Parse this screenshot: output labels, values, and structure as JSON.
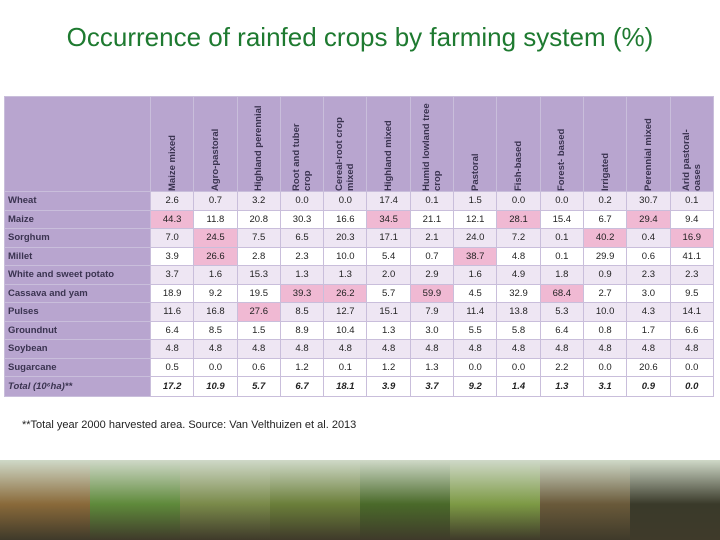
{
  "title": "Occurrence of rainfed crops by farming system (%)",
  "table": {
    "columns": [
      "Maize mixed",
      "Agro-pastoral",
      "Highland perennial",
      "Root and tuber crop",
      "Cereal-root crop mixed",
      "Highland mixed",
      "Humid lowland tree crop",
      "Pastoral",
      "Fish-based",
      "Forest- based",
      "Irrigated",
      "Perennial mixed",
      "Arid pastoral-oases"
    ],
    "rows": [
      {
        "label": "Wheat",
        "values": [
          "2.6",
          "0.7",
          "3.2",
          "0.0",
          "0.0",
          "17.4",
          "0.1",
          "1.5",
          "0.0",
          "0.0",
          "0.2",
          "30.7",
          "0.1"
        ]
      },
      {
        "label": "Maize",
        "values": [
          "44.3",
          "11.8",
          "20.8",
          "30.3",
          "16.6",
          "34.5",
          "21.1",
          "12.1",
          "28.1",
          "15.4",
          "6.7",
          "29.4",
          "9.4"
        ]
      },
      {
        "label": "Sorghum",
        "values": [
          "7.0",
          "24.5",
          "7.5",
          "6.5",
          "20.3",
          "17.1",
          "2.1",
          "24.0",
          "7.2",
          "0.1",
          "40.2",
          "0.4",
          "16.9"
        ]
      },
      {
        "label": "Millet",
        "values": [
          "3.9",
          "26.6",
          "2.8",
          "2.3",
          "10.0",
          "5.4",
          "0.7",
          "38.7",
          "4.8",
          "0.1",
          "29.9",
          "0.6",
          "41.1"
        ]
      },
      {
        "label": "White and sweet potato",
        "values": [
          "3.7",
          "1.6",
          "15.3",
          "1.3",
          "1.3",
          "2.0",
          "2.9",
          "1.6",
          "4.9",
          "1.8",
          "0.9",
          "2.3",
          "2.3"
        ]
      },
      {
        "label": "Cassava and yam",
        "values": [
          "18.9",
          "9.2",
          "19.5",
          "39.3",
          "26.2",
          "5.7",
          "59.9",
          "4.5",
          "32.9",
          "68.4",
          "2.7",
          "3.0",
          "9.5"
        ]
      },
      {
        "label": "Pulses",
        "values": [
          "11.6",
          "16.8",
          "27.6",
          "8.5",
          "12.7",
          "15.1",
          "7.9",
          "11.4",
          "13.8",
          "5.3",
          "10.0",
          "4.3",
          "14.1"
        ]
      },
      {
        "label": "Groundnut",
        "values": [
          "6.4",
          "8.5",
          "1.5",
          "8.9",
          "10.4",
          "1.3",
          "3.0",
          "5.5",
          "5.8",
          "6.4",
          "0.8",
          "1.7",
          "6.6"
        ]
      },
      {
        "label": "Soybean",
        "values": [
          "4.8",
          "4.8",
          "4.8",
          "4.8",
          "4.8",
          "4.8",
          "4.8",
          "4.8",
          "4.8",
          "4.8",
          "4.8",
          "4.8",
          "4.8"
        ]
      },
      {
        "label": "Sugarcane",
        "values": [
          "0.5",
          "0.0",
          "0.6",
          "1.2",
          "0.1",
          "1.2",
          "1.3",
          "0.0",
          "0.0",
          "2.2",
          "0.0",
          "20.6",
          "0.0"
        ]
      }
    ],
    "total": {
      "label": "Total (10⁶ha)**",
      "values": [
        "17.2",
        "10.9",
        "5.7",
        "6.7",
        "18.1",
        "3.9",
        "3.7",
        "9.2",
        "1.4",
        "1.3",
        "3.1",
        "0.9",
        "0.0"
      ]
    }
  },
  "footnote": "**Total year 2000 harvested area. Source: Van Velthuizen et al. 2013",
  "photo_strip": [
    "#8a6a3a",
    "#5f8a3b",
    "#7a8a4a",
    "#6b7f3a",
    "#4a6a2a",
    "#7d9a45",
    "#6a5a3a",
    "#3a3a2a"
  ]
}
